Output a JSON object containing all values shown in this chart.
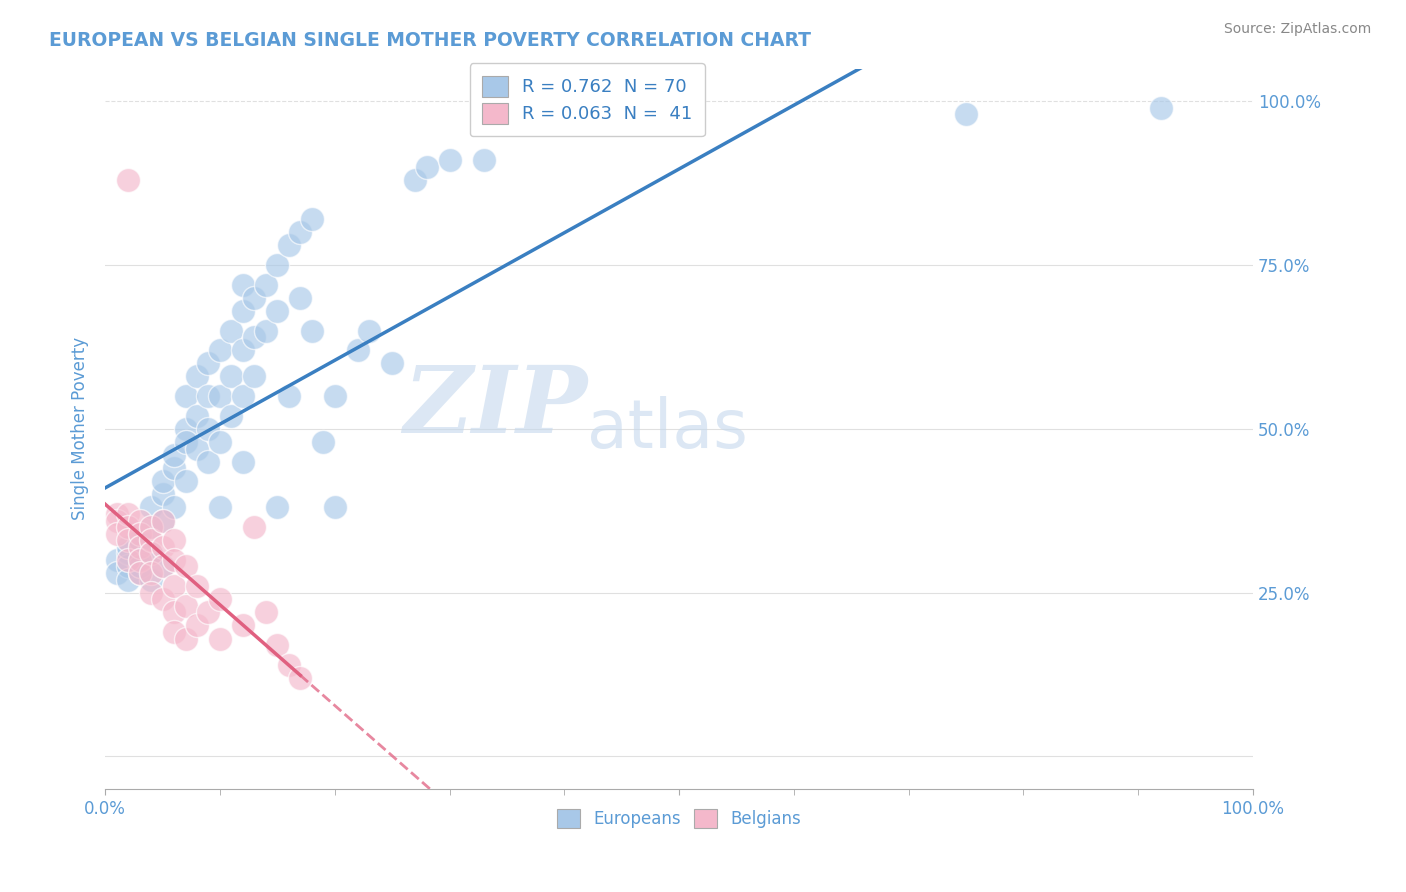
{
  "title": "EUROPEAN VS BELGIAN SINGLE MOTHER POVERTY CORRELATION CHART",
  "source": "Source: ZipAtlas.com",
  "ylabel": "Single Mother Poverty",
  "r_blue": 0.762,
  "n_blue": 70,
  "r_pink": 0.063,
  "n_pink": 41,
  "blue_color": "#a8c8e8",
  "pink_color": "#f4b8cb",
  "blue_line_color": "#3a7fc1",
  "pink_line_color": "#e06080",
  "watermark_zip": "ZIP",
  "watermark_atlas": "atlas",
  "background_color": "#ffffff",
  "grid_color": "#e0e0e0",
  "title_color": "#5b9bd5",
  "tick_color": "#5b9bd5",
  "xlim": [
    0.0,
    1.0
  ],
  "ylim": [
    -0.05,
    1.05
  ],
  "blue_scatter": [
    [
      0.01,
      0.3
    ],
    [
      0.01,
      0.28
    ],
    [
      0.02,
      0.31
    ],
    [
      0.02,
      0.29
    ],
    [
      0.02,
      0.32
    ],
    [
      0.02,
      0.27
    ],
    [
      0.03,
      0.3
    ],
    [
      0.03,
      0.28
    ],
    [
      0.03,
      0.33
    ],
    [
      0.03,
      0.29
    ],
    [
      0.04,
      0.31
    ],
    [
      0.04,
      0.35
    ],
    [
      0.04,
      0.38
    ],
    [
      0.04,
      0.27
    ],
    [
      0.05,
      0.4
    ],
    [
      0.05,
      0.42
    ],
    [
      0.05,
      0.36
    ],
    [
      0.05,
      0.29
    ],
    [
      0.06,
      0.44
    ],
    [
      0.06,
      0.46
    ],
    [
      0.06,
      0.38
    ],
    [
      0.07,
      0.5
    ],
    [
      0.07,
      0.48
    ],
    [
      0.07,
      0.42
    ],
    [
      0.07,
      0.55
    ],
    [
      0.08,
      0.52
    ],
    [
      0.08,
      0.47
    ],
    [
      0.08,
      0.58
    ],
    [
      0.09,
      0.6
    ],
    [
      0.09,
      0.5
    ],
    [
      0.09,
      0.55
    ],
    [
      0.09,
      0.45
    ],
    [
      0.1,
      0.62
    ],
    [
      0.1,
      0.55
    ],
    [
      0.1,
      0.48
    ],
    [
      0.1,
      0.38
    ],
    [
      0.11,
      0.65
    ],
    [
      0.11,
      0.58
    ],
    [
      0.11,
      0.52
    ],
    [
      0.12,
      0.68
    ],
    [
      0.12,
      0.62
    ],
    [
      0.12,
      0.55
    ],
    [
      0.12,
      0.72
    ],
    [
      0.12,
      0.45
    ],
    [
      0.13,
      0.7
    ],
    [
      0.13,
      0.64
    ],
    [
      0.13,
      0.58
    ],
    [
      0.14,
      0.72
    ],
    [
      0.14,
      0.65
    ],
    [
      0.15,
      0.75
    ],
    [
      0.15,
      0.68
    ],
    [
      0.15,
      0.38
    ],
    [
      0.16,
      0.78
    ],
    [
      0.16,
      0.55
    ],
    [
      0.17,
      0.8
    ],
    [
      0.17,
      0.7
    ],
    [
      0.18,
      0.82
    ],
    [
      0.18,
      0.65
    ],
    [
      0.19,
      0.48
    ],
    [
      0.2,
      0.38
    ],
    [
      0.2,
      0.55
    ],
    [
      0.22,
      0.62
    ],
    [
      0.23,
      0.65
    ],
    [
      0.25,
      0.6
    ],
    [
      0.27,
      0.88
    ],
    [
      0.28,
      0.9
    ],
    [
      0.3,
      0.91
    ],
    [
      0.33,
      0.91
    ],
    [
      0.75,
      0.98
    ],
    [
      0.92,
      0.99
    ]
  ],
  "pink_scatter": [
    [
      0.01,
      0.37
    ],
    [
      0.01,
      0.36
    ],
    [
      0.01,
      0.34
    ],
    [
      0.02,
      0.37
    ],
    [
      0.02,
      0.35
    ],
    [
      0.02,
      0.33
    ],
    [
      0.02,
      0.3
    ],
    [
      0.03,
      0.36
    ],
    [
      0.03,
      0.34
    ],
    [
      0.03,
      0.32
    ],
    [
      0.03,
      0.3
    ],
    [
      0.03,
      0.28
    ],
    [
      0.04,
      0.35
    ],
    [
      0.04,
      0.33
    ],
    [
      0.04,
      0.31
    ],
    [
      0.04,
      0.28
    ],
    [
      0.04,
      0.25
    ],
    [
      0.05,
      0.36
    ],
    [
      0.05,
      0.32
    ],
    [
      0.05,
      0.29
    ],
    [
      0.05,
      0.24
    ],
    [
      0.06,
      0.33
    ],
    [
      0.06,
      0.3
    ],
    [
      0.06,
      0.26
    ],
    [
      0.06,
      0.22
    ],
    [
      0.06,
      0.19
    ],
    [
      0.07,
      0.29
    ],
    [
      0.07,
      0.23
    ],
    [
      0.07,
      0.18
    ],
    [
      0.08,
      0.26
    ],
    [
      0.08,
      0.2
    ],
    [
      0.09,
      0.22
    ],
    [
      0.1,
      0.24
    ],
    [
      0.1,
      0.18
    ],
    [
      0.12,
      0.2
    ],
    [
      0.13,
      0.35
    ],
    [
      0.14,
      0.22
    ],
    [
      0.15,
      0.17
    ],
    [
      0.16,
      0.14
    ],
    [
      0.17,
      0.12
    ],
    [
      0.02,
      0.88
    ]
  ]
}
